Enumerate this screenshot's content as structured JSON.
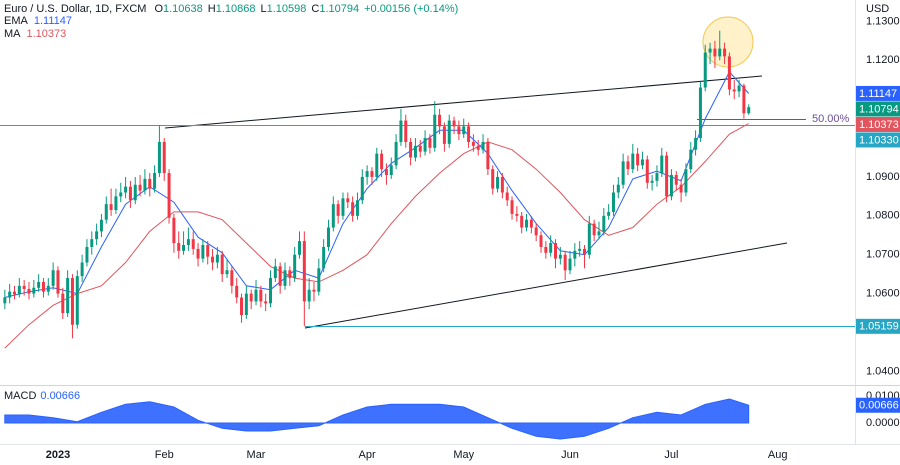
{
  "chart_data": [
    {
      "type": "candlestick",
      "title": "Euro / U.S. Dollar, 1D, FXCM",
      "ohlc_labels": [
        "O",
        "H",
        "L",
        "C"
      ],
      "change": "+0.00156 (+0.14%)",
      "currency": "USD",
      "up_color": "#089981",
      "down_color": "#f23645",
      "xlim": [
        -1,
        176
      ],
      "xticks": [
        {
          "value": 11,
          "label": "2023"
        },
        {
          "value": 33,
          "label": "Feb"
        },
        {
          "value": 52,
          "label": "Mar"
        },
        {
          "value": 75,
          "label": "Apr"
        },
        {
          "value": 95,
          "label": "May"
        },
        {
          "value": 117,
          "label": "Jun"
        },
        {
          "value": 138,
          "label": "Jul"
        },
        {
          "value": 160,
          "label": "Aug"
        }
      ],
      "ylim": [
        1.0365,
        1.1355
      ],
      "yticks": [
        {
          "value": 1.04,
          "label": "1.04000"
        },
        {
          "value": 1.06,
          "label": "1.06000"
        },
        {
          "value": 1.07,
          "label": "1.07000"
        },
        {
          "value": 1.08,
          "label": "1.08000"
        },
        {
          "value": 1.09,
          "label": "1.09000"
        },
        {
          "value": 1.12,
          "label": "1.12000"
        },
        {
          "value": 1.13,
          "label": "1.13000"
        }
      ],
      "ohlc": [
        [
          1.0575,
          1.061,
          1.056,
          1.059
        ],
        [
          1.059,
          1.0625,
          1.0575,
          1.0605
        ],
        [
          1.0605,
          1.062,
          1.0585,
          1.0598
        ],
        [
          1.0598,
          1.064,
          1.059,
          1.062
        ],
        [
          1.062,
          1.0635,
          1.0595,
          1.0612
        ],
        [
          1.0612,
          1.063,
          1.0585,
          1.06
        ],
        [
          1.06,
          1.0635,
          1.059,
          1.0615
        ],
        [
          1.0615,
          1.065,
          1.0605,
          1.063
        ],
        [
          1.063,
          1.064,
          1.059,
          1.0605
        ],
        [
          1.0605,
          1.064,
          1.0595,
          1.062
        ],
        [
          1.062,
          1.068,
          1.061,
          1.066
        ],
        [
          1.066,
          1.067,
          1.059,
          1.06
        ],
        [
          1.06,
          1.0615,
          1.0535,
          1.055
        ],
        [
          1.055,
          1.066,
          1.054,
          1.064
        ],
        [
          1.064,
          1.065,
          1.0485,
          1.052
        ],
        [
          1.052,
          1.066,
          1.051,
          1.0645
        ],
        [
          1.0645,
          1.07,
          1.063,
          1.068
        ],
        [
          1.068,
          1.074,
          1.067,
          1.072
        ],
        [
          1.072,
          1.076,
          1.07,
          1.074
        ],
        [
          1.074,
          1.078,
          1.0725,
          1.076
        ],
        [
          1.076,
          1.0805,
          1.0745,
          1.079
        ],
        [
          1.079,
          1.085,
          1.078,
          1.083
        ],
        [
          1.083,
          1.087,
          1.08,
          1.0815
        ],
        [
          1.0815,
          1.087,
          1.0805,
          1.085
        ],
        [
          1.085,
          1.0885,
          1.0835,
          1.086
        ],
        [
          1.086,
          1.09,
          1.0845,
          1.0875
        ],
        [
          1.0875,
          1.089,
          1.082,
          1.084
        ],
        [
          1.084,
          1.09,
          1.083,
          1.088
        ],
        [
          1.088,
          1.0905,
          1.085,
          1.0865
        ],
        [
          1.0865,
          1.092,
          1.0855,
          1.0895
        ],
        [
          1.0895,
          1.091,
          1.085,
          1.087
        ],
        [
          1.087,
          1.093,
          1.086,
          1.091
        ],
        [
          1.091,
          1.1033,
          1.09,
          1.099
        ],
        [
          1.099,
          1.1,
          1.089,
          1.091
        ],
        [
          1.091,
          1.092,
          1.078,
          1.0795
        ],
        [
          1.0795,
          1.0805,
          1.0705,
          1.073
        ],
        [
          1.073,
          1.076,
          1.069,
          1.071
        ],
        [
          1.071,
          1.076,
          1.07,
          1.0725
        ],
        [
          1.0725,
          1.077,
          1.071,
          1.074
        ],
        [
          1.074,
          1.076,
          1.07,
          1.0715
        ],
        [
          1.0715,
          1.073,
          1.067,
          1.069
        ],
        [
          1.069,
          1.074,
          1.068,
          1.0725
        ],
        [
          1.0725,
          1.0735,
          1.0675,
          1.0695
        ],
        [
          1.0695,
          1.0715,
          1.066,
          1.068
        ],
        [
          1.068,
          1.072,
          1.0665,
          1.07
        ],
        [
          1.07,
          1.071,
          1.063,
          1.065
        ],
        [
          1.065,
          1.069,
          1.064,
          1.066
        ],
        [
          1.066,
          1.067,
          1.06,
          1.062
        ],
        [
          1.062,
          1.064,
          1.0575,
          1.059
        ],
        [
          1.059,
          1.06,
          1.0525,
          1.0545
        ],
        [
          1.0545,
          1.062,
          1.0535,
          1.06
        ],
        [
          1.06,
          1.061,
          1.056,
          1.058
        ],
        [
          1.058,
          1.0635,
          1.057,
          1.061
        ],
        [
          1.061,
          1.062,
          1.0565,
          1.058
        ],
        [
          1.058,
          1.06,
          1.0555,
          1.0575
        ],
        [
          1.0575,
          1.066,
          1.0565,
          1.064
        ],
        [
          1.064,
          1.069,
          1.063,
          1.067
        ],
        [
          1.067,
          1.068,
          1.06,
          1.062
        ],
        [
          1.062,
          1.068,
          1.061,
          1.066
        ],
        [
          1.066,
          1.067,
          1.062,
          1.064
        ],
        [
          1.064,
          1.072,
          1.063,
          1.07
        ],
        [
          1.07,
          1.076,
          1.069,
          1.0735
        ],
        [
          1.0735,
          1.076,
          1.0516,
          1.058
        ],
        [
          1.058,
          1.064,
          1.056,
          1.061
        ],
        [
          1.061,
          1.063,
          1.058,
          1.0605
        ],
        [
          1.0605,
          1.069,
          1.0595,
          1.0665
        ],
        [
          1.0665,
          1.074,
          1.0655,
          1.072
        ],
        [
          1.072,
          1.079,
          1.071,
          1.077
        ],
        [
          1.077,
          1.085,
          1.076,
          1.083
        ],
        [
          1.083,
          1.084,
          1.078,
          1.08
        ],
        [
          1.08,
          1.086,
          1.079,
          1.0845
        ],
        [
          1.0845,
          1.086,
          1.082,
          1.0835
        ],
        [
          1.0835,
          1.085,
          1.0785,
          1.08
        ],
        [
          1.08,
          1.086,
          1.079,
          1.084
        ],
        [
          1.084,
          1.092,
          1.083,
          1.09
        ],
        [
          1.09,
          1.093,
          1.088,
          1.0915
        ],
        [
          1.0915,
          1.0925,
          1.088,
          1.09
        ],
        [
          1.09,
          1.0975,
          1.089,
          1.096
        ],
        [
          1.096,
          1.097,
          1.09,
          1.092
        ],
        [
          1.092,
          1.0935,
          1.088,
          1.0905
        ],
        [
          1.0905,
          1.095,
          1.0895,
          1.093
        ],
        [
          1.093,
          1.101,
          1.092,
          1.099
        ],
        [
          1.099,
          1.1075,
          1.098,
          1.1045
        ],
        [
          1.1045,
          1.106,
          1.0975,
          1.099
        ],
        [
          1.099,
          1.1,
          1.093,
          1.095
        ],
        [
          1.095,
          1.1,
          1.094,
          1.098
        ],
        [
          1.098,
          1.0995,
          1.095,
          1.0965
        ],
        [
          1.0965,
          1.102,
          1.0955,
          1.1
        ],
        [
          1.1,
          1.101,
          1.096,
          1.0975
        ],
        [
          1.0975,
          1.1095,
          1.0965,
          1.106
        ],
        [
          1.106,
          1.1075,
          1.101,
          1.103
        ],
        [
          1.103,
          1.104,
          1.0965,
          1.0985
        ],
        [
          1.0985,
          1.106,
          1.0975,
          1.1045
        ],
        [
          1.1045,
          1.1055,
          1.101,
          1.103
        ],
        [
          1.103,
          1.1045,
          1.0995,
          1.101
        ],
        [
          1.101,
          1.105,
          1.1,
          1.103
        ],
        [
          1.103,
          1.104,
          1.0975,
          1.099
        ],
        [
          1.099,
          1.101,
          1.0965,
          1.098
        ],
        [
          1.098,
          1.0995,
          1.0955,
          1.097
        ],
        [
          1.097,
          1.101,
          1.096,
          1.099
        ],
        [
          1.099,
          1.1,
          1.0905,
          1.092
        ],
        [
          1.092,
          1.093,
          1.0855,
          1.087
        ],
        [
          1.087,
          1.0915,
          1.086,
          1.09
        ],
        [
          1.09,
          1.091,
          1.0845,
          1.086
        ],
        [
          1.086,
          1.0875,
          1.0825,
          1.084
        ],
        [
          1.084,
          1.085,
          1.079,
          1.0805
        ],
        [
          1.0805,
          1.0825,
          1.0785,
          1.08
        ],
        [
          1.08,
          1.081,
          1.0755,
          1.077
        ],
        [
          1.077,
          1.0805,
          1.076,
          1.079
        ],
        [
          1.079,
          1.08,
          1.0755,
          1.077
        ],
        [
          1.077,
          1.078,
          1.0735,
          1.075
        ],
        [
          1.075,
          1.076,
          1.0705,
          1.072
        ],
        [
          1.072,
          1.0735,
          1.069,
          1.0705
        ],
        [
          1.0705,
          1.075,
          1.0695,
          1.073
        ],
        [
          1.073,
          1.074,
          1.0665,
          1.069
        ],
        [
          1.069,
          1.072,
          1.0675,
          1.07
        ],
        [
          1.07,
          1.071,
          1.0635,
          1.066
        ],
        [
          1.066,
          1.071,
          1.065,
          1.069
        ],
        [
          1.069,
          1.073,
          1.067,
          1.071
        ],
        [
          1.071,
          1.0735,
          1.0695,
          1.0715
        ],
        [
          1.0715,
          1.0725,
          1.0665,
          1.07
        ],
        [
          1.07,
          1.08,
          1.069,
          1.078
        ],
        [
          1.078,
          1.079,
          1.0735,
          1.075
        ],
        [
          1.075,
          1.0785,
          1.074,
          1.076
        ],
        [
          1.076,
          1.082,
          1.075,
          1.08
        ],
        [
          1.08,
          1.083,
          1.079,
          1.081
        ],
        [
          1.081,
          1.088,
          1.08,
          1.086
        ],
        [
          1.086,
          1.09,
          1.0845,
          1.088
        ],
        [
          1.088,
          1.096,
          1.087,
          1.094
        ],
        [
          1.094,
          1.0955,
          1.0905,
          1.092
        ],
        [
          1.092,
          1.0985,
          1.091,
          1.096
        ],
        [
          1.096,
          1.0975,
          1.0915,
          1.093
        ],
        [
          1.093,
          1.0965,
          1.092,
          1.0945
        ],
        [
          1.0945,
          1.0955,
          1.087,
          1.0885
        ],
        [
          1.0885,
          1.0905,
          1.0865,
          1.089
        ],
        [
          1.089,
          1.093,
          1.0875,
          1.091
        ],
        [
          1.091,
          1.0975,
          1.09,
          1.0955
        ],
        [
          1.0955,
          1.0965,
          1.0835,
          1.085
        ],
        [
          1.085,
          1.092,
          1.084,
          1.0905
        ],
        [
          1.0905,
          1.0915,
          1.0865,
          1.088
        ],
        [
          1.088,
          1.0895,
          1.0835,
          1.086
        ],
        [
          1.086,
          1.0935,
          1.085,
          1.092
        ],
        [
          1.092,
          1.099,
          1.091,
          1.097
        ],
        [
          1.097,
          1.102,
          1.0955,
          1.1
        ],
        [
          1.1,
          1.1145,
          1.099,
          1.113
        ],
        [
          1.113,
          1.124,
          1.112,
          1.122
        ],
        [
          1.122,
          1.1245,
          1.119,
          1.123
        ],
        [
          1.123,
          1.125,
          1.118,
          1.121
        ],
        [
          1.121,
          1.1276,
          1.12,
          1.123
        ],
        [
          1.123,
          1.1245,
          1.119,
          1.121
        ],
        [
          1.121,
          1.122,
          1.111,
          1.1125
        ],
        [
          1.1125,
          1.115,
          1.11,
          1.112
        ],
        [
          1.112,
          1.115,
          1.1105,
          1.1135
        ],
        [
          1.1135,
          1.114,
          1.105,
          1.10638
        ],
        [
          1.10638,
          1.10868,
          1.10598,
          1.10794
        ]
      ],
      "indicators": [
        {
          "name": "EMA",
          "color": "#2962ff",
          "x": [
            0,
            5,
            10,
            15,
            20,
            25,
            30,
            35,
            40,
            45,
            50,
            55,
            60,
            65,
            70,
            75,
            80,
            85,
            90,
            95,
            100,
            105,
            110,
            115,
            120,
            125,
            130,
            135,
            140,
            145,
            150,
            154
          ],
          "values": [
            1.059,
            1.0605,
            1.0615,
            1.06,
            1.072,
            1.083,
            1.0875,
            1.0835,
            1.0745,
            1.0705,
            1.062,
            1.061,
            1.066,
            1.064,
            1.078,
            1.087,
            1.0935,
            1.0975,
            1.102,
            1.102,
            1.096,
            1.0865,
            1.078,
            1.071,
            1.07,
            1.077,
            1.0895,
            1.0915,
            1.089,
            1.105,
            1.117,
            1.11147
          ]
        },
        {
          "name": "MA",
          "color": "#e0555e",
          "x": [
            0,
            5,
            10,
            15,
            20,
            25,
            30,
            35,
            40,
            45,
            50,
            55,
            60,
            65,
            70,
            75,
            80,
            85,
            90,
            95,
            100,
            105,
            110,
            115,
            120,
            125,
            130,
            135,
            140,
            145,
            150,
            154
          ],
          "values": [
            1.046,
            1.052,
            1.057,
            1.06,
            1.062,
            1.068,
            1.076,
            1.081,
            1.081,
            1.079,
            1.073,
            1.067,
            1.064,
            1.063,
            1.066,
            1.07,
            1.078,
            1.085,
            1.091,
            1.096,
            1.099,
            1.097,
            1.092,
            1.086,
            1.079,
            1.075,
            1.077,
            1.083,
            1.0875,
            1.094,
            1.101,
            1.10373
          ]
        }
      ],
      "levels": [
        {
          "value": 1.1033,
          "label": "1.10330"
        },
        1.05159
      ],
      "level_color": "#26a6c4",
      "fib_label": "50.00%"
    },
    {
      "type": "area",
      "name": "MACD",
      "color": "#2962ff",
      "xlim": [
        -1,
        176
      ],
      "ylim": [
        -0.006,
        0.012
      ],
      "yticks": [
        {
          "value": 0.01,
          "label": "0.01000"
        },
        {
          "value": 0,
          "label": "0.00000"
        }
      ],
      "x": [
        0,
        5,
        10,
        15,
        20,
        25,
        30,
        35,
        40,
        45,
        50,
        55,
        60,
        65,
        70,
        75,
        80,
        85,
        90,
        95,
        100,
        105,
        110,
        115,
        120,
        125,
        130,
        135,
        140,
        145,
        150,
        154
      ],
      "values": [
        0.003,
        0.003,
        0.002,
        0.0005,
        0.004,
        0.007,
        0.008,
        0.006,
        0.001,
        -0.002,
        -0.003,
        -0.003,
        -0.002,
        -0.001,
        0.003,
        0.006,
        0.007,
        0.007,
        0.007,
        0.006,
        0.002,
        -0.002,
        -0.005,
        -0.006,
        -0.005,
        -0.002,
        0.002,
        0.004,
        0.003,
        0.007,
        0.009,
        0.00666
      ]
    }
  ]
}
